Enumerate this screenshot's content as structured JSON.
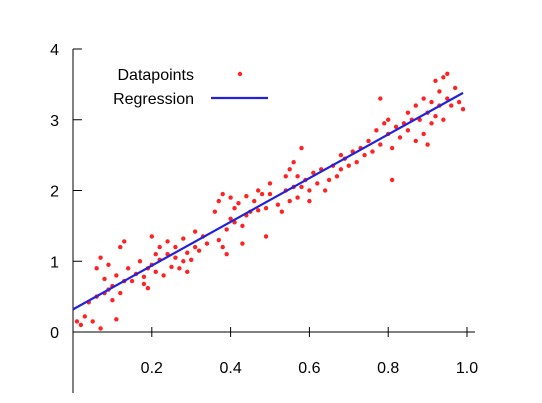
{
  "chart_data": {
    "type": "scatter",
    "title": "",
    "xlabel": "",
    "ylabel": "",
    "xlim": [
      0,
      1.0
    ],
    "ylim": [
      0,
      4
    ],
    "x_ticks": [
      0.2,
      0.4,
      0.6,
      0.8,
      1.0
    ],
    "x_tick_labels": [
      "0.2",
      "0.4",
      "0.6",
      "0.8",
      "1.0"
    ],
    "y_ticks": [
      0,
      1,
      2,
      3,
      4
    ],
    "y_tick_labels": [
      "0",
      "1",
      "2",
      "3",
      "4"
    ],
    "grid": false,
    "legend_position": "top-left",
    "series": [
      {
        "name": "Datapoints",
        "kind": "scatter",
        "color": "#ff2222",
        "points": [
          [
            0.01,
            0.15
          ],
          [
            0.02,
            0.1
          ],
          [
            0.03,
            0.22
          ],
          [
            0.04,
            0.42
          ],
          [
            0.05,
            0.15
          ],
          [
            0.06,
            0.5
          ],
          [
            0.06,
            0.9
          ],
          [
            0.07,
            0.05
          ],
          [
            0.07,
            1.05
          ],
          [
            0.08,
            0.55
          ],
          [
            0.08,
            0.75
          ],
          [
            0.09,
            0.6
          ],
          [
            0.09,
            0.95
          ],
          [
            0.1,
            0.45
          ],
          [
            0.1,
            0.65
          ],
          [
            0.11,
            0.18
          ],
          [
            0.11,
            0.8
          ],
          [
            0.12,
            0.55
          ],
          [
            0.12,
            1.2
          ],
          [
            0.13,
            0.72
          ],
          [
            0.13,
            1.28
          ],
          [
            0.14,
            0.9
          ],
          [
            0.15,
            0.72
          ],
          [
            0.16,
            0.82
          ],
          [
            0.17,
            1.0
          ],
          [
            0.18,
            0.78
          ],
          [
            0.18,
            0.68
          ],
          [
            0.19,
            0.9
          ],
          [
            0.19,
            0.62
          ],
          [
            0.2,
            1.35
          ],
          [
            0.2,
            0.95
          ],
          [
            0.21,
            1.1
          ],
          [
            0.21,
            0.85
          ],
          [
            0.22,
            1.2
          ],
          [
            0.22,
            1.02
          ],
          [
            0.23,
            0.8
          ],
          [
            0.24,
            1.1
          ],
          [
            0.24,
            1.28
          ],
          [
            0.25,
            0.92
          ],
          [
            0.26,
            1.05
          ],
          [
            0.26,
            1.2
          ],
          [
            0.27,
            0.9
          ],
          [
            0.28,
            1.0
          ],
          [
            0.28,
            1.32
          ],
          [
            0.29,
            1.12
          ],
          [
            0.29,
            0.85
          ],
          [
            0.3,
            1.02
          ],
          [
            0.31,
            1.2
          ],
          [
            0.31,
            1.42
          ],
          [
            0.32,
            1.15
          ],
          [
            0.33,
            1.35
          ],
          [
            0.34,
            1.25
          ],
          [
            0.36,
            1.7
          ],
          [
            0.37,
            1.3
          ],
          [
            0.37,
            1.85
          ],
          [
            0.38,
            1.2
          ],
          [
            0.38,
            1.95
          ],
          [
            0.39,
            1.45
          ],
          [
            0.39,
            1.1
          ],
          [
            0.4,
            1.6
          ],
          [
            0.4,
            1.9
          ],
          [
            0.41,
            1.55
          ],
          [
            0.41,
            1.75
          ],
          [
            0.42,
            1.82
          ],
          [
            0.43,
            1.5
          ],
          [
            0.43,
            1.25
          ],
          [
            0.44,
            1.65
          ],
          [
            0.44,
            1.92
          ],
          [
            0.45,
            1.7
          ],
          [
            0.46,
            1.85
          ],
          [
            0.47,
            1.72
          ],
          [
            0.47,
            2.0
          ],
          [
            0.48,
            1.95
          ],
          [
            0.49,
            1.75
          ],
          [
            0.49,
            1.35
          ],
          [
            0.5,
            2.1
          ],
          [
            0.5,
            1.95
          ],
          [
            0.52,
            1.8
          ],
          [
            0.53,
            1.7
          ],
          [
            0.54,
            2.0
          ],
          [
            0.54,
            2.2
          ],
          [
            0.55,
            2.3
          ],
          [
            0.55,
            1.85
          ],
          [
            0.56,
            2.05
          ],
          [
            0.56,
            2.4
          ],
          [
            0.57,
            2.2
          ],
          [
            0.57,
            1.9
          ],
          [
            0.58,
            2.6
          ],
          [
            0.58,
            2.05
          ],
          [
            0.59,
            2.15
          ],
          [
            0.6,
            2.0
          ],
          [
            0.6,
            1.85
          ],
          [
            0.61,
            2.25
          ],
          [
            0.62,
            2.1
          ],
          [
            0.63,
            2.3
          ],
          [
            0.64,
            2.0
          ],
          [
            0.65,
            2.15
          ],
          [
            0.66,
            2.35
          ],
          [
            0.67,
            2.2
          ],
          [
            0.68,
            2.5
          ],
          [
            0.68,
            2.3
          ],
          [
            0.69,
            2.45
          ],
          [
            0.7,
            2.35
          ],
          [
            0.71,
            2.55
          ],
          [
            0.72,
            2.4
          ],
          [
            0.73,
            2.6
          ],
          [
            0.74,
            2.5
          ],
          [
            0.75,
            2.7
          ],
          [
            0.76,
            2.55
          ],
          [
            0.77,
            2.85
          ],
          [
            0.78,
            3.3
          ],
          [
            0.78,
            2.65
          ],
          [
            0.79,
            2.95
          ],
          [
            0.8,
            2.8
          ],
          [
            0.8,
            3.0
          ],
          [
            0.81,
            2.6
          ],
          [
            0.81,
            2.15
          ],
          [
            0.82,
            2.9
          ],
          [
            0.83,
            2.75
          ],
          [
            0.84,
            2.95
          ],
          [
            0.85,
            2.85
          ],
          [
            0.85,
            3.1
          ],
          [
            0.86,
            3.0
          ],
          [
            0.87,
            2.7
          ],
          [
            0.87,
            3.2
          ],
          [
            0.88,
            3.0
          ],
          [
            0.89,
            2.8
          ],
          [
            0.89,
            3.3
          ],
          [
            0.9,
            3.1
          ],
          [
            0.9,
            2.65
          ],
          [
            0.91,
            3.25
          ],
          [
            0.91,
            2.95
          ],
          [
            0.92,
            3.05
          ],
          [
            0.92,
            3.55
          ],
          [
            0.93,
            3.2
          ],
          [
            0.93,
            3.4
          ],
          [
            0.94,
            3.0
          ],
          [
            0.94,
            3.6
          ],
          [
            0.95,
            3.3
          ],
          [
            0.95,
            3.65
          ],
          [
            0.96,
            3.2
          ],
          [
            0.97,
            3.45
          ],
          [
            0.98,
            3.25
          ],
          [
            0.99,
            3.15
          ]
        ]
      },
      {
        "name": "Regression",
        "kind": "line",
        "color": "#2222dd",
        "points": [
          [
            0.0,
            0.32
          ],
          [
            0.99,
            3.38
          ]
        ]
      }
    ]
  }
}
